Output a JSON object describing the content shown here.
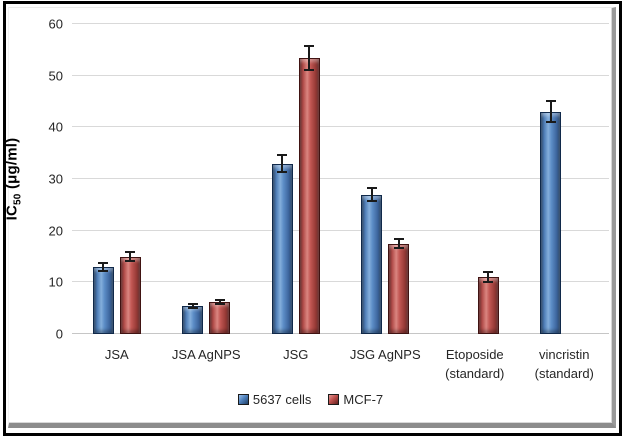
{
  "chart_data": {
    "type": "bar",
    "title": "",
    "categories": [
      "JSA",
      "JSA AgNPS",
      "JSG",
      "JSG AgNPS",
      "Etoposide\n(standard)",
      "vincristin\n(standard)"
    ],
    "series": [
      {
        "name": "5637 cells",
        "color": "#4F81BD",
        "values": [
          13,
          5.5,
          33,
          27,
          null,
          43
        ],
        "errors": [
          1,
          0.6,
          1.8,
          1.5,
          null,
          2.2
        ]
      },
      {
        "name": "MCF-7",
        "color": "#C0504D",
        "values": [
          15,
          6.2,
          53.5,
          17.5,
          11,
          null
        ],
        "errors": [
          1,
          0.6,
          2.5,
          1,
          1.2,
          null
        ]
      }
    ],
    "xlabel": "",
    "ylabel": "IC50 (μg/ml)",
    "ylim": [
      0,
      60
    ],
    "ytick_step": 10,
    "grid": true,
    "legend_position": "bottom",
    "error_bars": true
  },
  "y_axis_title": {
    "prefix": "IC",
    "sub": "50",
    "suffix": " (μg/ml)"
  },
  "frame": {
    "outer_border_color": "#000000",
    "bevel_color": "#8c8c8c",
    "background": "#ffffff",
    "gridline_color": "#d9d9d9"
  }
}
